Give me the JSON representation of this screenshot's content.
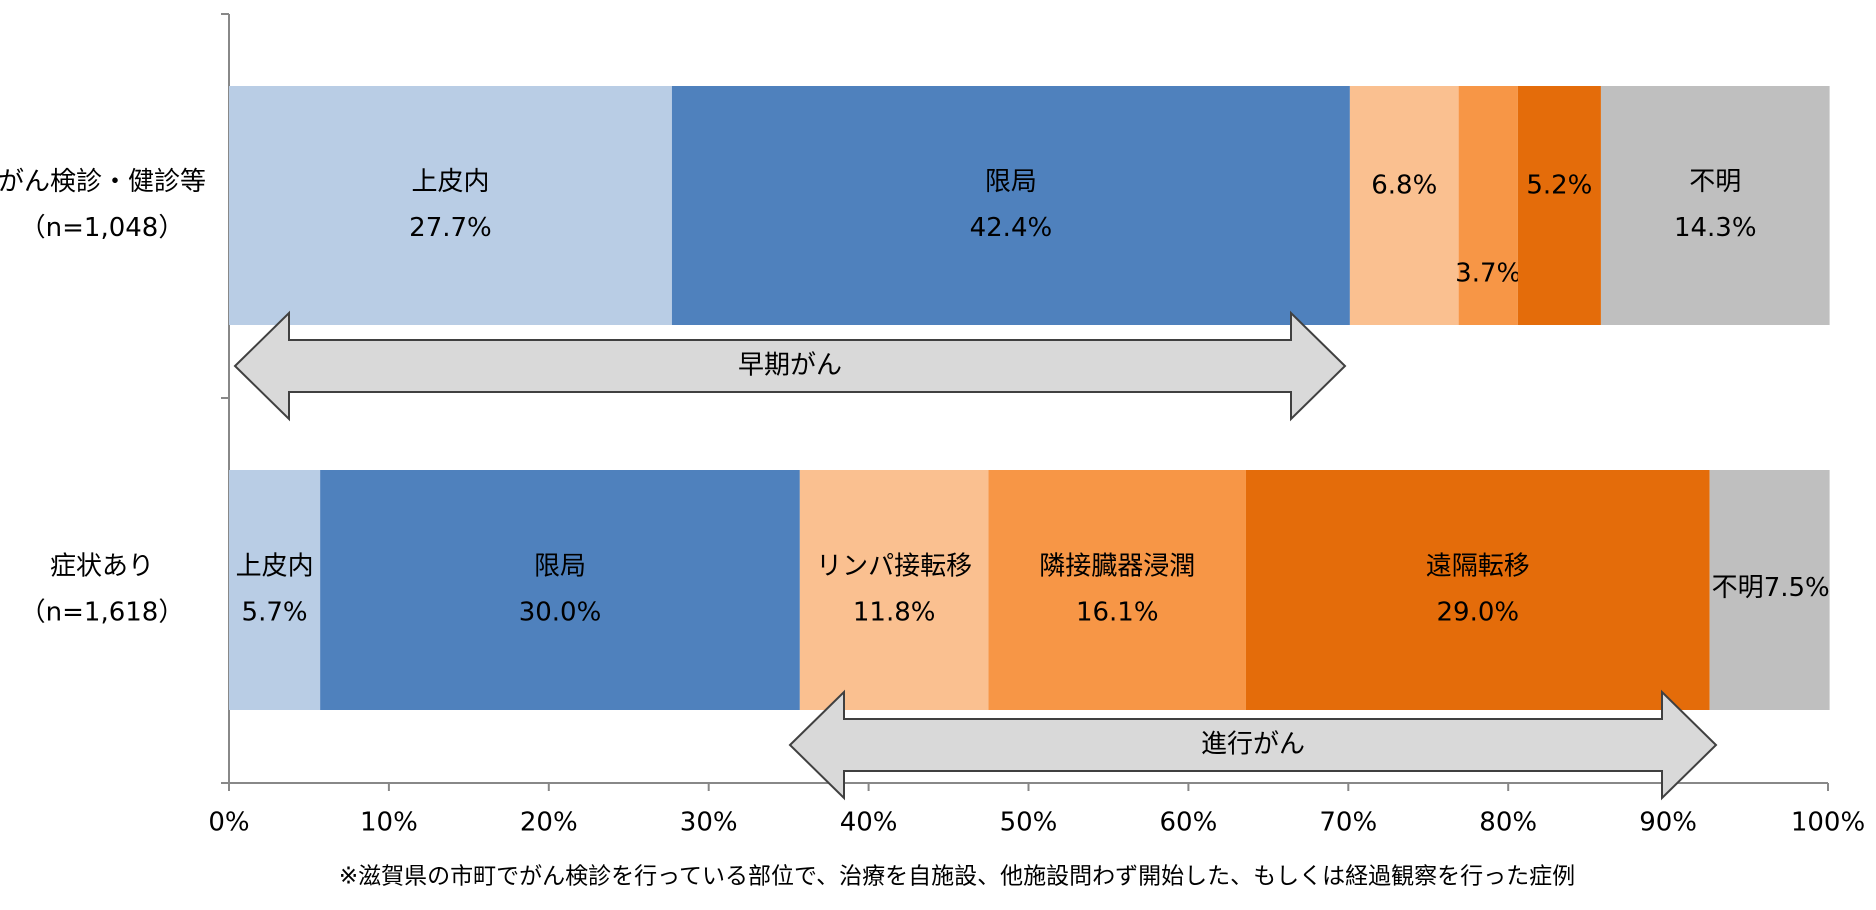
{
  "chart_data": {
    "type": "stacked_bar_horizontal",
    "categories": [
      "がん検診・健診等",
      "症状あり"
    ],
    "category_notes": [
      "（n=1,048）",
      "（n=1,618）"
    ],
    "series": [
      {
        "name": "上皮内",
        "color": "#b9cde5",
        "values": [
          27.7,
          5.7
        ],
        "value_labels": [
          "27.7%",
          "5.7%"
        ]
      },
      {
        "name": "限局",
        "color": "#4f81bd",
        "values": [
          42.4,
          30.0
        ],
        "value_labels": [
          "42.4%",
          "30.0%"
        ]
      },
      {
        "name": "リンパ接転移",
        "color": "#fac090",
        "values": [
          6.8,
          11.8
        ],
        "value_labels": [
          "6.8%",
          "11.8%"
        ]
      },
      {
        "name": "隣接臓器浸潤",
        "color": "#f79646",
        "values": [
          3.7,
          16.1
        ],
        "value_labels": [
          "3.7%",
          "16.1%"
        ]
      },
      {
        "name": "遠隔転移",
        "color": "#e46c0a",
        "values": [
          5.2,
          29.0
        ],
        "value_labels": [
          "5.2%",
          "29.0%"
        ]
      },
      {
        "name": "不明",
        "color": "#bfbfbf",
        "values": [
          14.3,
          7.5
        ],
        "value_labels": [
          "14.3%",
          "7.5%"
        ]
      }
    ],
    "xlim": [
      0,
      100
    ],
    "xticks": [
      {
        "value": 0,
        "label": "0%"
      },
      {
        "value": 10,
        "label": "10%"
      },
      {
        "value": 20,
        "label": "20%"
      },
      {
        "value": 30,
        "label": "30%"
      },
      {
        "value": 40,
        "label": "40%"
      },
      {
        "value": 50,
        "label": "50%"
      },
      {
        "value": 60,
        "label": "60%"
      },
      {
        "value": 70,
        "label": "70%"
      },
      {
        "value": 80,
        "label": "80%"
      },
      {
        "value": 90,
        "label": "90%"
      },
      {
        "value": 100,
        "label": "100%"
      }
    ],
    "annotations": [
      "早期がん",
      "進行がん"
    ],
    "footnote": "※滋賀県の市町でがん検診を行っている部位で、治療を自施設、他施設問わず開始した、もしくは経過観察を行った症例"
  }
}
